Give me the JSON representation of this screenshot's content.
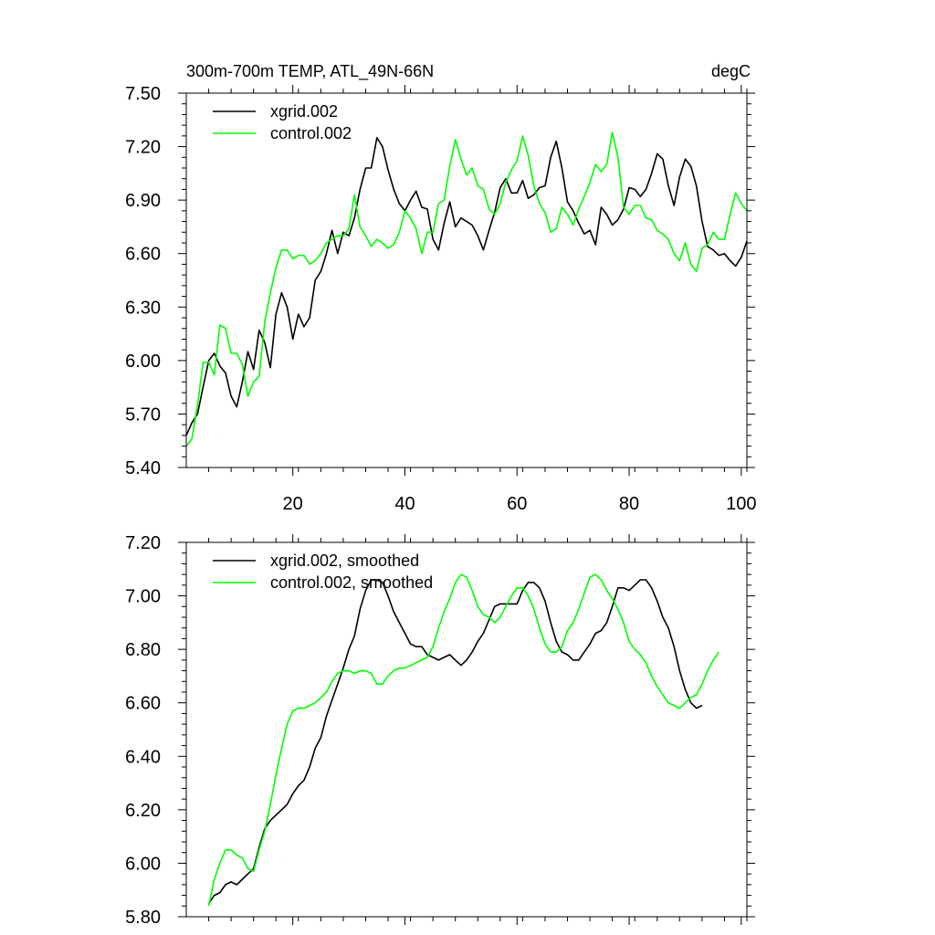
{
  "chart_data": [
    {
      "type": "line",
      "title": "300m-700m TEMP, ATL_49N-66N",
      "units": "degC",
      "xlabel": "",
      "ylabel": "",
      "xlim": [
        1,
        101
      ],
      "ylim": [
        5.4,
        7.5
      ],
      "xticks": [
        20,
        40,
        60,
        80,
        100
      ],
      "xtick_labels": [
        "20",
        "40",
        "60",
        "80",
        "100"
      ],
      "yticks": [
        5.4,
        5.7,
        6.0,
        6.3,
        6.6,
        6.9,
        7.2,
        7.5
      ],
      "ytick_labels": [
        "5.40",
        "5.70",
        "6.00",
        "6.30",
        "6.60",
        "6.90",
        "7.20",
        "7.50"
      ],
      "legend": "top-left",
      "series": [
        {
          "name": "xgrid.002",
          "color": "#000000",
          "x_start": 1,
          "values": [
            5.58,
            5.65,
            5.7,
            5.85,
            6.0,
            6.04,
            5.97,
            5.93,
            5.8,
            5.74,
            5.88,
            6.05,
            5.95,
            6.17,
            6.1,
            5.96,
            6.26,
            6.38,
            6.3,
            6.12,
            6.26,
            6.19,
            6.24,
            6.45,
            6.5,
            6.6,
            6.73,
            6.6,
            6.72,
            6.7,
            6.8,
            6.96,
            7.08,
            7.08,
            7.25,
            7.2,
            7.07,
            6.96,
            6.88,
            6.84,
            6.9,
            6.95,
            6.86,
            6.85,
            6.68,
            6.62,
            6.77,
            6.89,
            6.75,
            6.8,
            6.78,
            6.76,
            6.7,
            6.62,
            6.73,
            6.83,
            6.97,
            7.02,
            6.94,
            6.94,
            7.01,
            6.91,
            6.93,
            6.97,
            6.98,
            7.14,
            7.23,
            7.08,
            6.89,
            6.84,
            6.77,
            6.71,
            6.73,
            6.65,
            6.86,
            6.82,
            6.76,
            6.79,
            6.85,
            6.97,
            6.96,
            6.92,
            6.96,
            7.05,
            7.16,
            7.13,
            6.98,
            6.87,
            7.03,
            7.13,
            7.09,
            6.98,
            6.78,
            6.64,
            6.62,
            6.59,
            6.6,
            6.56,
            6.53,
            6.58,
            6.67
          ]
        },
        {
          "name": "control.002",
          "color": "#00ff00",
          "x_start": 1,
          "values": [
            5.52,
            5.56,
            5.75,
            5.99,
            5.99,
            5.92,
            6.2,
            6.18,
            6.04,
            6.04,
            5.98,
            5.8,
            5.88,
            5.91,
            6.22,
            6.38,
            6.52,
            6.62,
            6.62,
            6.57,
            6.59,
            6.59,
            6.54,
            6.56,
            6.6,
            6.66,
            6.68,
            6.7,
            6.7,
            6.74,
            6.93,
            6.75,
            6.7,
            6.64,
            6.68,
            6.66,
            6.63,
            6.65,
            6.72,
            6.84,
            6.8,
            6.74,
            6.6,
            6.72,
            6.72,
            6.88,
            6.9,
            7.09,
            7.24,
            7.13,
            7.04,
            7.08,
            6.98,
            6.96,
            6.85,
            6.82,
            6.88,
            7.0,
            7.07,
            7.12,
            7.26,
            7.15,
            6.98,
            6.88,
            6.83,
            6.72,
            6.74,
            6.86,
            6.82,
            6.76,
            6.85,
            6.92,
            7.0,
            7.1,
            7.06,
            7.1,
            7.28,
            7.14,
            6.86,
            6.82,
            6.87,
            6.87,
            6.8,
            6.79,
            6.73,
            6.71,
            6.68,
            6.6,
            6.56,
            6.66,
            6.54,
            6.5,
            6.63,
            6.65,
            6.72,
            6.68,
            6.68,
            6.82,
            6.94,
            6.88,
            6.84
          ]
        }
      ]
    },
    {
      "type": "line",
      "title": "",
      "xlabel": "",
      "ylabel": "",
      "xlim": [
        1,
        101
      ],
      "ylim": [
        5.8,
        7.2
      ],
      "xticks": [
        20,
        40,
        60,
        80,
        100
      ],
      "yticks": [
        5.8,
        6.0,
        6.2,
        6.4,
        6.6,
        6.8,
        7.0,
        7.2
      ],
      "ytick_labels": [
        "5.80",
        "6.00",
        "6.20",
        "6.40",
        "6.60",
        "6.80",
        "7.00",
        "7.20"
      ],
      "legend": "top-left",
      "series": [
        {
          "name": "xgrid.002, smoothed",
          "color": "#000000",
          "x_start": 5,
          "values": [
            5.85,
            5.88,
            5.89,
            5.92,
            5.93,
            5.92,
            5.94,
            5.96,
            5.98,
            6.06,
            6.13,
            6.16,
            6.18,
            6.2,
            6.22,
            6.26,
            6.29,
            6.31,
            6.36,
            6.43,
            6.47,
            6.55,
            6.61,
            6.67,
            6.73,
            6.8,
            6.85,
            6.95,
            7.02,
            7.06,
            7.06,
            7.05,
            7.0,
            6.94,
            6.9,
            6.86,
            6.82,
            6.81,
            6.81,
            6.78,
            6.77,
            6.76,
            6.77,
            6.78,
            6.76,
            6.74,
            6.76,
            6.79,
            6.83,
            6.86,
            6.91,
            6.96,
            6.97,
            6.97,
            6.97,
            6.97,
            7.02,
            7.05,
            7.05,
            7.03,
            6.98,
            6.9,
            6.83,
            6.79,
            6.78,
            6.76,
            6.76,
            6.79,
            6.82,
            6.86,
            6.87,
            6.9,
            6.96,
            7.03,
            7.03,
            7.02,
            7.04,
            7.06,
            7.06,
            7.03,
            6.98,
            6.92,
            6.88,
            6.81,
            6.72,
            6.65,
            6.6,
            6.58,
            6.59
          ]
        },
        {
          "name": "control.002, smoothed",
          "color": "#00ff00",
          "x_start": 5,
          "values": [
            5.84,
            5.94,
            6.0,
            6.05,
            6.05,
            6.03,
            6.02,
            5.98,
            5.97,
            6.05,
            6.12,
            6.22,
            6.33,
            6.43,
            6.52,
            6.57,
            6.58,
            6.58,
            6.59,
            6.6,
            6.62,
            6.64,
            6.68,
            6.71,
            6.72,
            6.72,
            6.71,
            6.72,
            6.72,
            6.71,
            6.67,
            6.67,
            6.7,
            6.72,
            6.73,
            6.73,
            6.74,
            6.75,
            6.76,
            6.77,
            6.81,
            6.88,
            6.94,
            6.99,
            7.05,
            7.08,
            7.07,
            7.02,
            6.96,
            6.93,
            6.92,
            6.9,
            6.92,
            6.96,
            7.0,
            7.03,
            7.03,
            7.0,
            6.95,
            6.88,
            6.82,
            6.79,
            6.79,
            6.81,
            6.87,
            6.9,
            6.95,
            7.01,
            7.07,
            7.08,
            7.06,
            7.02,
            6.99,
            6.95,
            6.9,
            6.83,
            6.8,
            6.78,
            6.75,
            6.7,
            6.66,
            6.63,
            6.6,
            6.59,
            6.58,
            6.6,
            6.62,
            6.63,
            6.67,
            6.72,
            6.76,
            6.79
          ]
        }
      ]
    }
  ]
}
